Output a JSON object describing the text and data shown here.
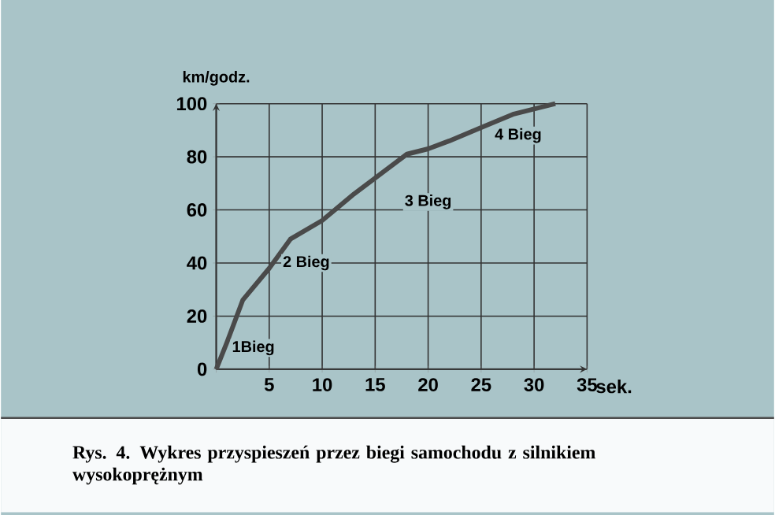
{
  "chart_data": {
    "type": "line",
    "xlabel": "sek.",
    "ylabel": "km/godz.",
    "x": [
      0,
      1,
      2.5,
      5,
      7,
      10,
      13,
      15,
      18,
      20,
      22,
      25,
      28,
      32
    ],
    "values": [
      0,
      10,
      26,
      38,
      49,
      56,
      66,
      72,
      81,
      83,
      86,
      91,
      96,
      100
    ],
    "color": "#4a4a4a",
    "xlim": [
      0,
      35
    ],
    "ylim": [
      0,
      100
    ],
    "xticks": [
      {
        "value": 0,
        "label": null
      },
      5,
      10,
      15,
      20,
      25,
      30,
      35
    ],
    "yticks": [
      0,
      20,
      40,
      60,
      80,
      100
    ],
    "grid": true,
    "annotations": [
      {
        "text": "1Bieg",
        "x": 3.5,
        "y": 8
      },
      {
        "text": "2 Bieg",
        "x": 8.5,
        "y": 40
      },
      {
        "text": "3 Bieg",
        "x": 20,
        "y": 63
      },
      {
        "text": "4 Bieg",
        "x": 28.5,
        "y": 88
      },
      "Rys. 4. Wykres przyspieszeń przez biegi samochodu z silnikiem wysokoprężnym"
    ]
  }
}
